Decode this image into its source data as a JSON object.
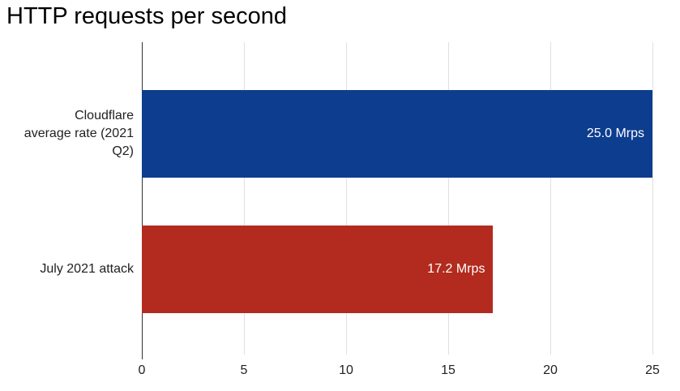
{
  "chart_data": {
    "type": "bar",
    "orientation": "horizontal",
    "title": "HTTP requests per second",
    "categories": [
      "Cloudflare average rate (2021 Q2)",
      "July 2021 attack"
    ],
    "values": [
      25.0,
      17.2
    ],
    "value_labels": [
      "25.0 Mrps",
      "17.2 Mrps"
    ],
    "bar_colors": [
      "#0d3d8f",
      "#b22b1e"
    ],
    "bar_label_color": "#ffffff",
    "x_ticks": [
      0,
      5,
      10,
      15,
      20,
      25
    ],
    "xlim": [
      0,
      25
    ],
    "xlabel": "",
    "ylabel": "",
    "unit": "Mrps",
    "grid": true,
    "gridline_color": "#e0e0e0",
    "baseline_color": "#333333",
    "axis_label_color": "#222222",
    "category_label_color": "#212121",
    "legend": "none"
  }
}
